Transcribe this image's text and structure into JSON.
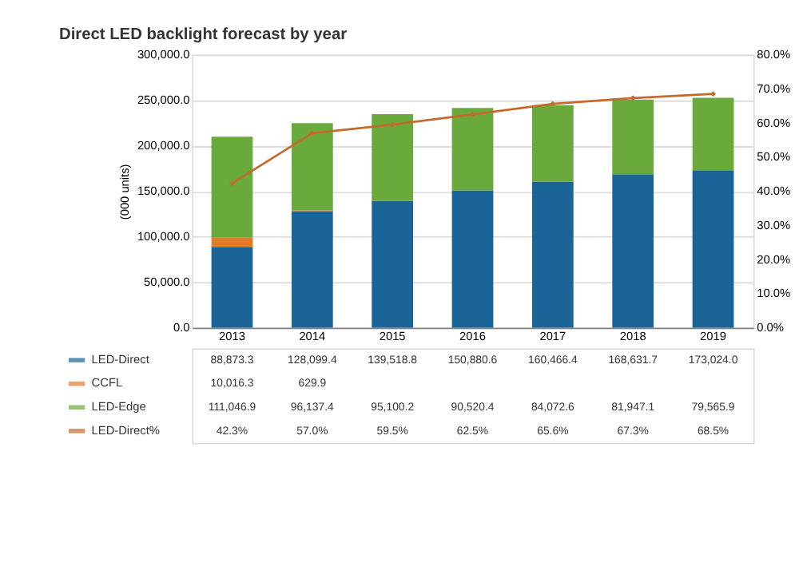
{
  "chart_data": {
    "type": "bar",
    "title": "Direct LED backlight forecast by year",
    "ylabel": "(000 units)",
    "categories": [
      "2013",
      "2014",
      "2015",
      "2016",
      "2017",
      "2018",
      "2019"
    ],
    "stacked": true,
    "grid": "y",
    "legend": "bottom",
    "data_labels": true,
    "ylim": [
      0,
      300000
    ],
    "yticks": [
      {
        "value": 0,
        "label": "0.0"
      },
      {
        "value": 50000,
        "label": "50,000.0"
      },
      {
        "value": 100000,
        "label": "100,000.0"
      },
      {
        "value": 150000,
        "label": "150,000.0"
      },
      {
        "value": 200000,
        "label": "200,000.0"
      },
      {
        "value": 250000,
        "label": "250,000.0"
      },
      {
        "value": 300000,
        "label": "300,000.0"
      }
    ],
    "y2lim": [
      0,
      80
    ],
    "y2ticks": [
      {
        "value": 0,
        "label": "0.0%"
      },
      {
        "value": 10,
        "label": "10.0%"
      },
      {
        "value": 20,
        "label": "20.0%"
      },
      {
        "value": 30,
        "label": "30.0%"
      },
      {
        "value": 40,
        "label": "40.0%"
      },
      {
        "value": 50,
        "label": "50.0%"
      },
      {
        "value": 60,
        "label": "60.0%"
      },
      {
        "value": 70,
        "label": "70.0%"
      },
      {
        "value": 80,
        "label": "80.0%"
      }
    ],
    "series": [
      {
        "name": "LED-Direct",
        "color": "#1b6498",
        "values": [
          88873.3,
          128099.4,
          139518.8,
          150880.6,
          160466.4,
          168631.7,
          173024.0
        ],
        "value_labels": [
          "88,873.3",
          "128,099.4",
          "139,518.8",
          "150,880.6",
          "160,466.4",
          "168,631.7",
          "173,024.0"
        ]
      },
      {
        "name": "CCFL",
        "color": "#e07b2a",
        "values": [
          10016.3,
          629.9,
          null,
          null,
          null,
          null,
          null
        ],
        "value_labels": [
          "10,016.3",
          "629.9",
          null,
          null,
          null,
          null,
          null
        ]
      },
      {
        "name": "LED-Edge",
        "color": "#6aaa3c",
        "values": [
          111046.9,
          96137.4,
          95100.2,
          90520.4,
          84072.6,
          81947.1,
          79565.9
        ],
        "value_labels": [
          "111,046.9",
          "96,137.4",
          "95,100.2",
          "90,520.4",
          "84,072.6",
          "81,947.1",
          "79,565.9"
        ]
      },
      {
        "name": "LED-Direct%",
        "type": "line",
        "axis": "y2",
        "color": "#c46a2e",
        "marker": "diamond",
        "values": [
          42.3,
          57.0,
          59.5,
          62.5,
          65.6,
          67.3,
          68.5
        ],
        "value_labels": [
          "42.3%",
          "57.0%",
          "59.5%",
          "62.5%",
          "65.6%",
          "67.3%",
          "68.5%"
        ]
      }
    ]
  }
}
